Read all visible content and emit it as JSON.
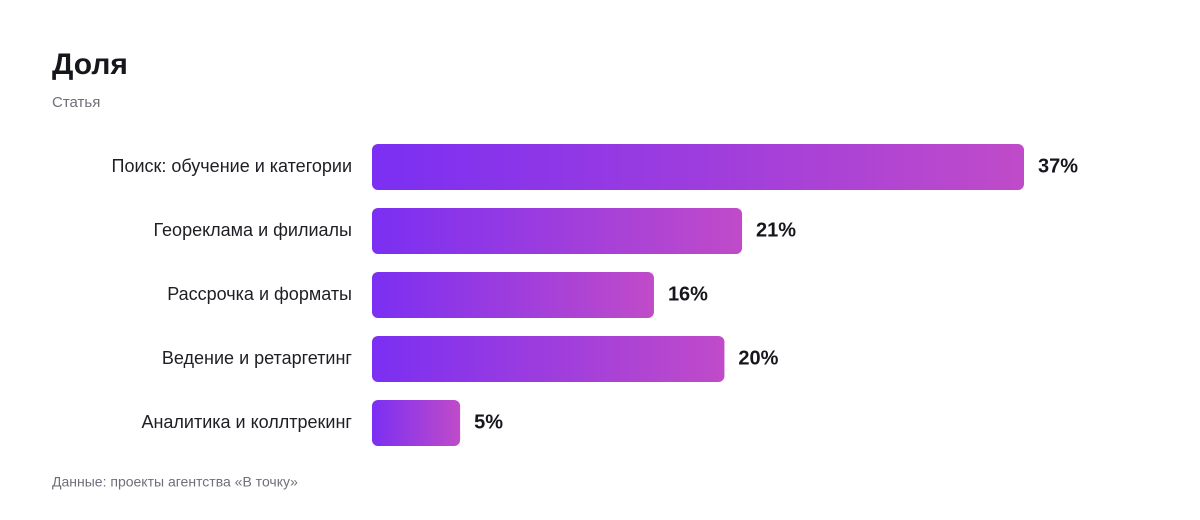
{
  "chart_data": {
    "type": "bar",
    "orientation": "horizontal",
    "title": "Доля",
    "subtitle": "Статья",
    "categories": [
      "Поиск: обучение и категории",
      "Геореклама и филиалы",
      "Рассрочка и форматы",
      "Ведение и ретаргетинг",
      "Аналитика и коллтрекинг"
    ],
    "values": [
      37,
      21,
      16,
      20,
      5
    ],
    "value_labels": [
      "37%",
      "21%",
      "16%",
      "20%",
      "5%"
    ],
    "gradient": [
      "#7b2ff2",
      "#c04bc9"
    ],
    "source": "Данные: проекты агентства «В точку»"
  }
}
